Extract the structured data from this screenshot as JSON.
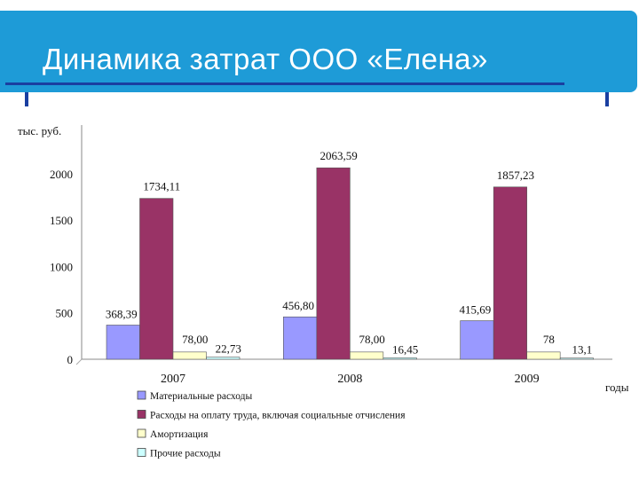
{
  "slide": {
    "title": "Динамика затрат ООО «Елена»",
    "accent_color": "#1e9bd7"
  },
  "chart_data": {
    "type": "bar",
    "categories": [
      "2007",
      "2008",
      "2009"
    ],
    "ylabel": "тыс. руб.",
    "xlabel": "годы",
    "ylim": [
      0,
      2500
    ],
    "yticks": [
      0,
      500,
      1000,
      1500,
      2000
    ],
    "grid": false,
    "legend_position": "bottom-left",
    "series": [
      {
        "name": "Материальные расходы",
        "color": "#9999ff",
        "values": [
          368.39,
          456.8,
          415.69
        ],
        "labels": [
          "368,39",
          "456,80",
          "415,69"
        ]
      },
      {
        "name": "Расходы на оплату труда, включая социальные отчисления",
        "color": "#993366",
        "values": [
          1734.11,
          2063.59,
          1857.23
        ],
        "labels": [
          "1734,11",
          "2063,59",
          "1857,23"
        ]
      },
      {
        "name": "Амортизация",
        "color": "#ffffcc",
        "values": [
          78.0,
          78.0,
          78
        ],
        "labels": [
          "78,00",
          "78,00",
          "78"
        ]
      },
      {
        "name": "Прочие расходы",
        "color": "#ccffff",
        "values": [
          22.73,
          16.45,
          13.1
        ],
        "labels": [
          "22,73",
          "16,45",
          "13,1"
        ]
      }
    ]
  }
}
